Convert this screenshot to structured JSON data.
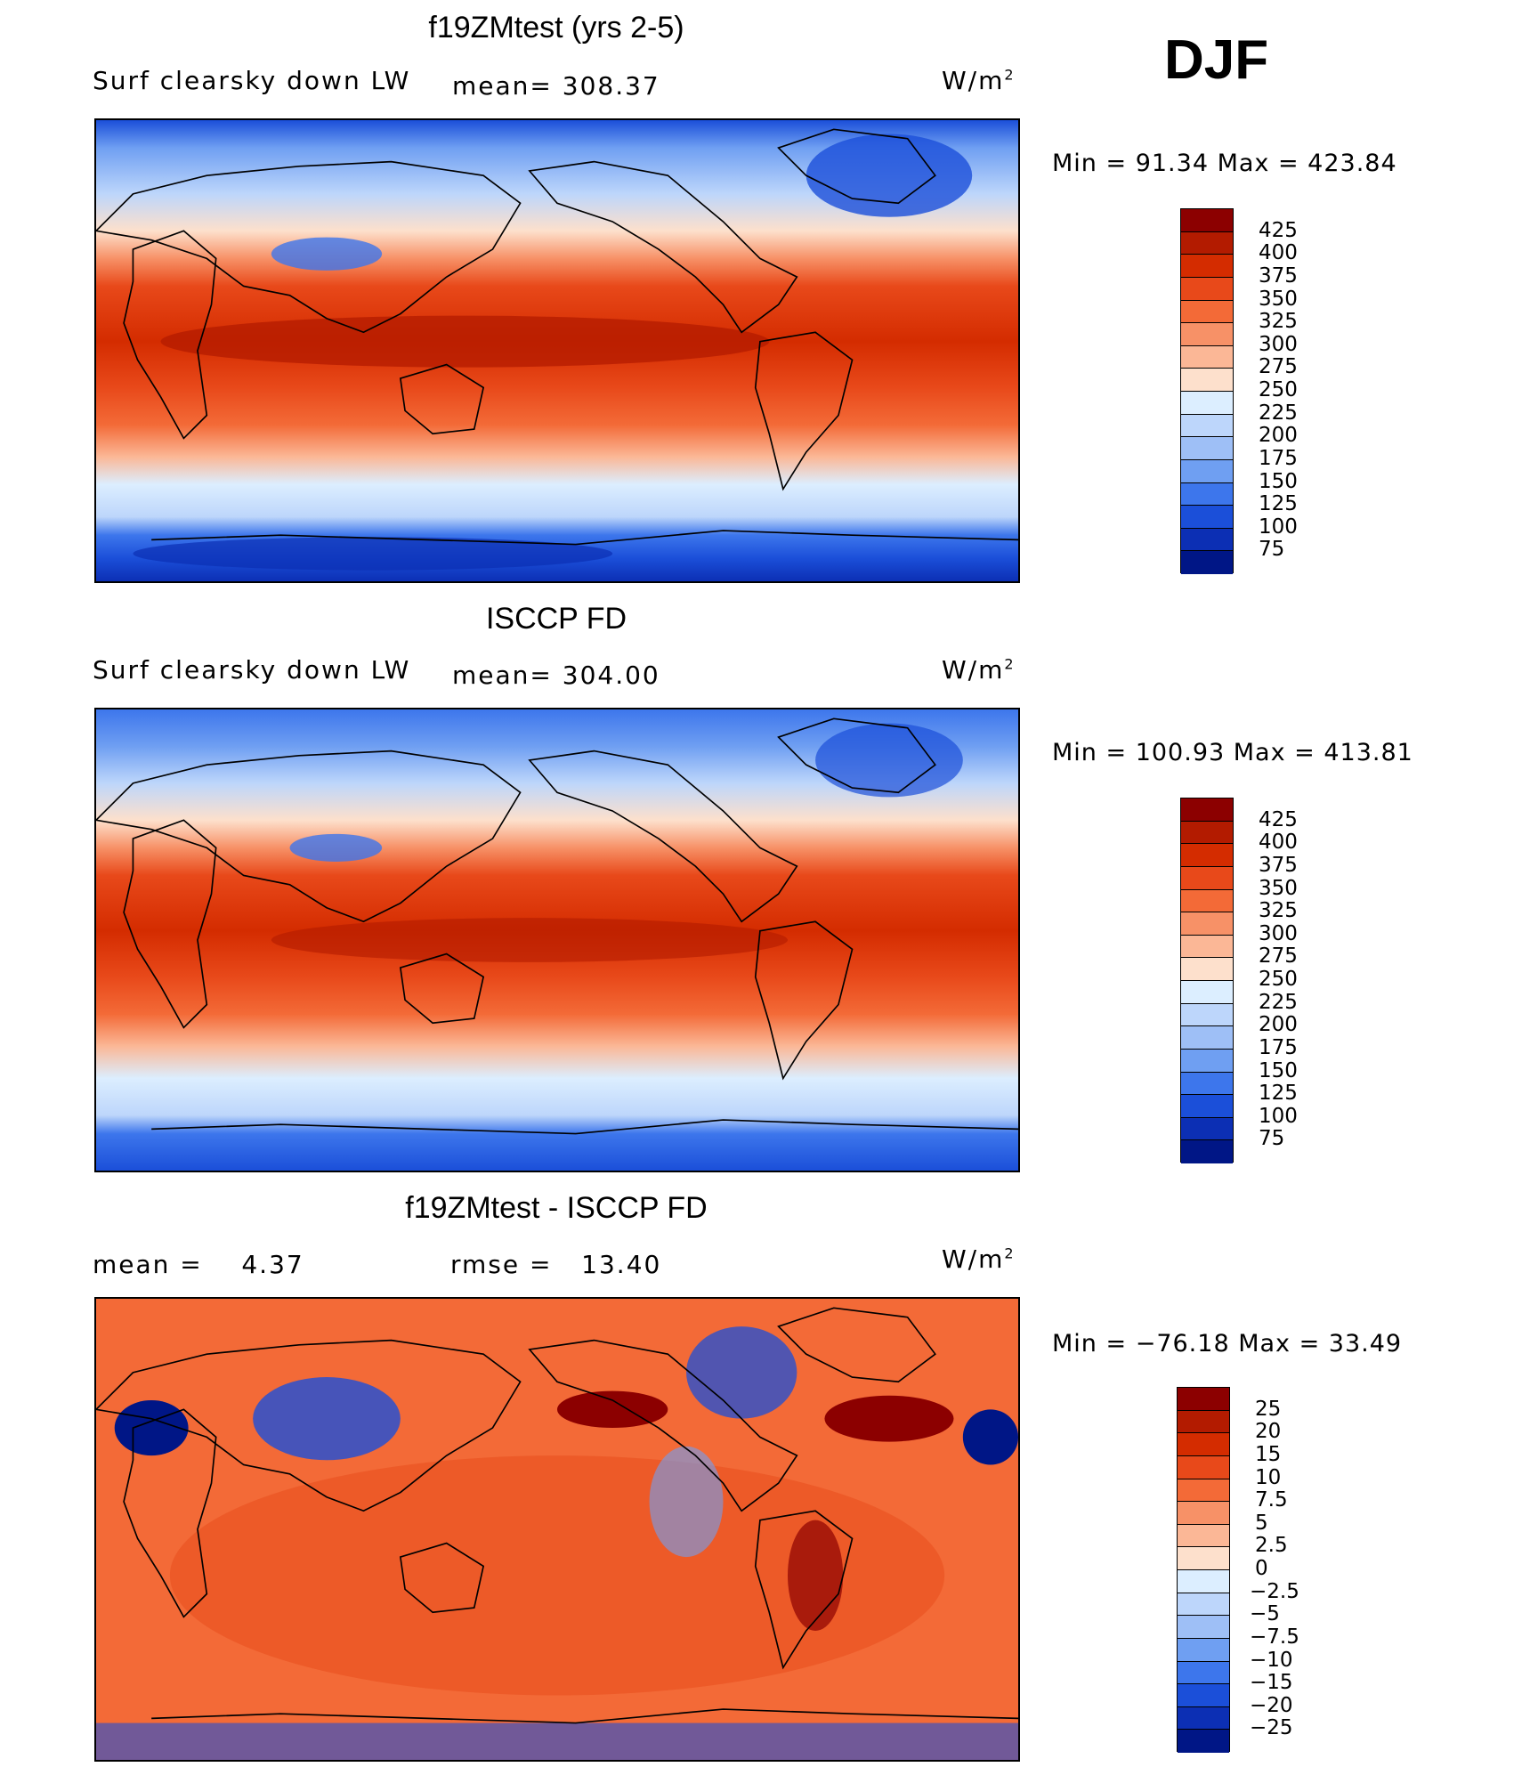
{
  "season": "DJF",
  "panels": [
    {
      "title": "f19ZMtest (yrs 2-5)",
      "left_label": "Surf clearsky down LW",
      "center_label": "mean= 308.37",
      "units": "W/m",
      "units_sup": "2",
      "minmax": "Min =   91.34 Max = 423.84",
      "colorbar": {
        "labels": [
          "425",
          "400",
          "375",
          "350",
          "325",
          "300",
          "275",
          "250",
          "225",
          "200",
          "175",
          "150",
          "125",
          "100",
          "75"
        ],
        "colors": [
          "#8c0000",
          "#b31b00",
          "#d42c00",
          "#e8491a",
          "#f36a37",
          "#f79167",
          "#fbb796",
          "#fde0cc",
          "#dceeff",
          "#bdd6fb",
          "#9ebff6",
          "#6f9ff2",
          "#3d76ec",
          "#1b4fd9",
          "#0c2fb4",
          "#001686"
        ]
      },
      "min": 91.34,
      "max": 423.84,
      "mean": 308.37
    },
    {
      "title": "ISCCP FD",
      "left_label": "Surf clearsky down LW",
      "center_label": "mean= 304.00",
      "units": "W/m",
      "units_sup": "2",
      "minmax": "Min = 100.93 Max = 413.81",
      "colorbar": {
        "labels": [
          "425",
          "400",
          "375",
          "350",
          "325",
          "300",
          "275",
          "250",
          "225",
          "200",
          "175",
          "150",
          "125",
          "100",
          "75"
        ],
        "colors": [
          "#8c0000",
          "#b31b00",
          "#d42c00",
          "#e8491a",
          "#f36a37",
          "#f79167",
          "#fbb796",
          "#fde0cc",
          "#dceeff",
          "#bdd6fb",
          "#9ebff6",
          "#6f9ff2",
          "#3d76ec",
          "#1b4fd9",
          "#0c2fb4",
          "#001686"
        ]
      },
      "min": 100.93,
      "max": 413.81,
      "mean": 304.0
    },
    {
      "title": "f19ZMtest - ISCCP FD",
      "left_label": "mean =    4.37",
      "center_label": "rmse =   13.40",
      "units": "W/m",
      "units_sup": "2",
      "minmax": "Min = −76.18 Max =   33.49",
      "colorbar": {
        "labels": [
          "25",
          "20",
          "15",
          "10",
          "7.5",
          "5",
          "2.5",
          "0",
          "−2.5",
          "−5",
          "−7.5",
          "−10",
          "−15",
          "−20",
          "−25"
        ],
        "colors": [
          "#8c0000",
          "#b31b00",
          "#d42c00",
          "#e8491a",
          "#f36a37",
          "#f79167",
          "#fbb796",
          "#fde0cc",
          "#dceeff",
          "#bdd6fb",
          "#9ebff6",
          "#6f9ff2",
          "#3d76ec",
          "#1b4fd9",
          "#0c2fb4",
          "#001686"
        ]
      },
      "min": -76.18,
      "max": 33.49,
      "mean": 4.37,
      "rmse": 13.4
    }
  ]
}
